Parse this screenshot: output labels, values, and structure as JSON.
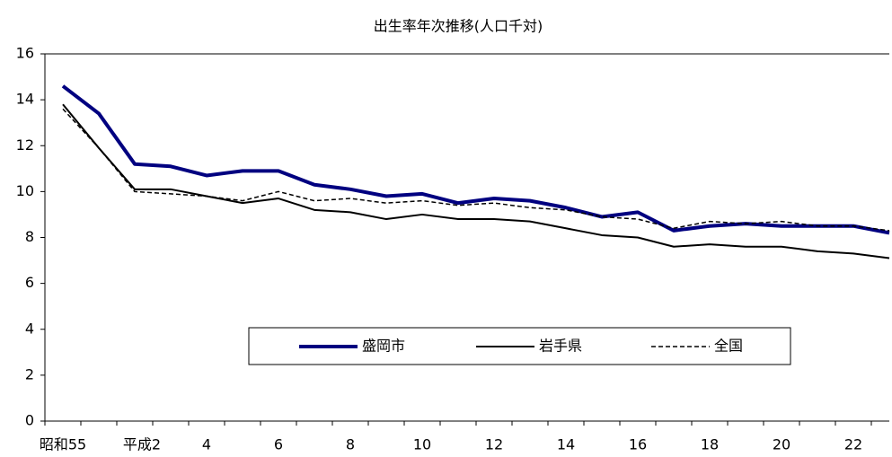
{
  "chart_data": {
    "type": "line",
    "title": "出生率年次推移(人口千対)",
    "categories": [
      "昭和55",
      null,
      "平成2",
      null,
      "4",
      null,
      "6",
      null,
      "8",
      null,
      "10",
      null,
      "12",
      null,
      "14",
      null,
      "16",
      null,
      "18",
      null,
      "20",
      null,
      "22",
      null
    ],
    "series": [
      {
        "name": "盛岡市",
        "color": "#000080",
        "values": [
          14.6,
          13.4,
          11.2,
          11.1,
          10.7,
          10.9,
          10.9,
          10.3,
          10.1,
          9.8,
          9.9,
          9.5,
          9.7,
          9.6,
          9.3,
          8.9,
          9.1,
          8.3,
          8.5,
          8.6,
          8.5,
          8.5,
          8.5,
          8.2
        ]
      },
      {
        "name": "岩手県",
        "color": "#000000",
        "values": [
          13.8,
          11.9,
          10.1,
          10.1,
          9.8,
          9.5,
          9.7,
          9.2,
          9.1,
          8.8,
          9.0,
          8.8,
          8.8,
          8.7,
          8.4,
          8.1,
          8.0,
          7.6,
          7.7,
          7.6,
          7.6,
          7.4,
          7.3,
          7.1
        ]
      },
      {
        "name": "全国",
        "color": "#000000",
        "values": [
          13.6,
          11.9,
          10.0,
          9.9,
          9.8,
          9.6,
          10.0,
          9.6,
          9.7,
          9.5,
          9.6,
          9.4,
          9.5,
          9.3,
          9.2,
          8.9,
          8.8,
          8.4,
          8.7,
          8.6,
          8.7,
          8.5,
          8.5,
          8.3
        ]
      }
    ],
    "ylim": [
      0,
      16
    ],
    "yticks": [
      0,
      2,
      4,
      6,
      8,
      10,
      12,
      14,
      16
    ],
    "grid": false
  }
}
